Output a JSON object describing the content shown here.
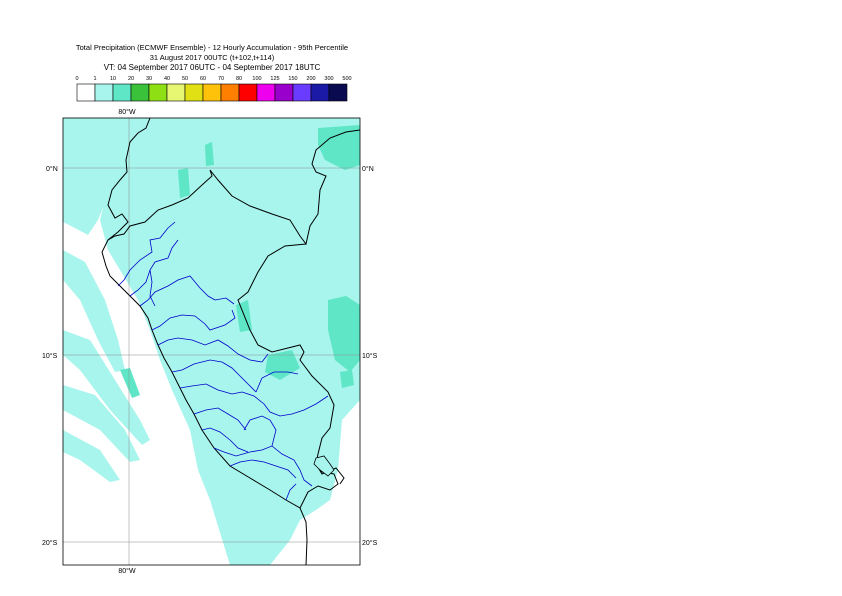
{
  "titles": {
    "line1": "Total Precipitation (ECMWF Ensemble) - 12 Hourly Accumulation - 95th Percentile",
    "line2": "31 August 2017 00UTC (t+102,t+114)",
    "line3": "VT: 04 September 2017 06UTC - 04 September 2017 18UTC"
  },
  "legend": {
    "thresholds": [
      "0",
      "1",
      "10",
      "20",
      "30",
      "40",
      "50",
      "60",
      "70",
      "80",
      "100",
      "125",
      "150",
      "200",
      "300",
      "500"
    ],
    "colors": [
      "#ffffff",
      "#a7f5ed",
      "#5fe6c6",
      "#39c23a",
      "#8ee015",
      "#e8f772",
      "#e0e015",
      "#ffc20a",
      "#ff7f00",
      "#ff0000",
      "#ee00ee",
      "#9900cc",
      "#6a3cff",
      "#1a1aa6",
      "#0a0a50"
    ]
  },
  "map": {
    "lat_labels": [
      "0°N",
      "10°S",
      "20°S"
    ],
    "lon_labels": [
      "80°W",
      "80°W"
    ],
    "colors": {
      "ocean": "#ffffff",
      "rain_light": "#a7f5ed",
      "rain_moderate": "#5fe6c6",
      "coast": "#000000",
      "admin": "#0000cc",
      "grid": "#8c8c8c"
    }
  }
}
